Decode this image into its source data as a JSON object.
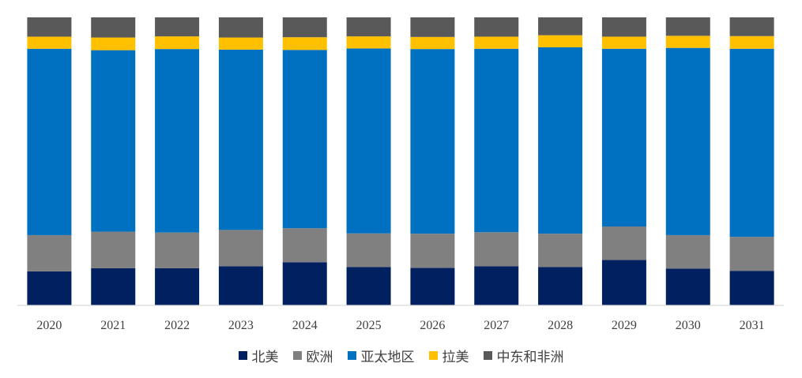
{
  "chart_data": {
    "type": "bar",
    "stacked": true,
    "normalized": true,
    "categories": [
      "2020",
      "2021",
      "2022",
      "2023",
      "2024",
      "2025",
      "2026",
      "2027",
      "2028",
      "2029",
      "2030",
      "2031"
    ],
    "series": [
      {
        "name": "北美",
        "color": "#002060",
        "values": [
          11.8,
          12.9,
          12.9,
          13.6,
          15.0,
          13.3,
          13.0,
          13.6,
          13.3,
          15.8,
          12.8,
          12.0
        ]
      },
      {
        "name": "欧洲",
        "color": "#808080",
        "values": [
          12.6,
          12.7,
          12.4,
          12.6,
          11.8,
          11.7,
          11.9,
          11.8,
          11.6,
          11.6,
          11.6,
          11.8
        ]
      },
      {
        "name": "亚太地区",
        "color": "#0070C0",
        "values": [
          64.7,
          63.0,
          63.7,
          62.6,
          61.9,
          64.2,
          64.1,
          63.7,
          64.7,
          61.7,
          65.0,
          65.3
        ]
      },
      {
        "name": "拉美",
        "color": "#FFC000",
        "values": [
          4.2,
          4.4,
          4.4,
          4.2,
          4.4,
          4.2,
          4.2,
          4.2,
          4.2,
          4.2,
          4.2,
          4.4
        ]
      },
      {
        "name": "中东和非洲",
        "color": "#595959",
        "values": [
          6.7,
          7.0,
          6.6,
          7.0,
          6.9,
          6.6,
          6.8,
          6.7,
          6.2,
          6.7,
          6.4,
          6.5
        ]
      }
    ],
    "ylim": [
      0,
      100
    ],
    "grid": false,
    "legend_position": "bottom"
  }
}
